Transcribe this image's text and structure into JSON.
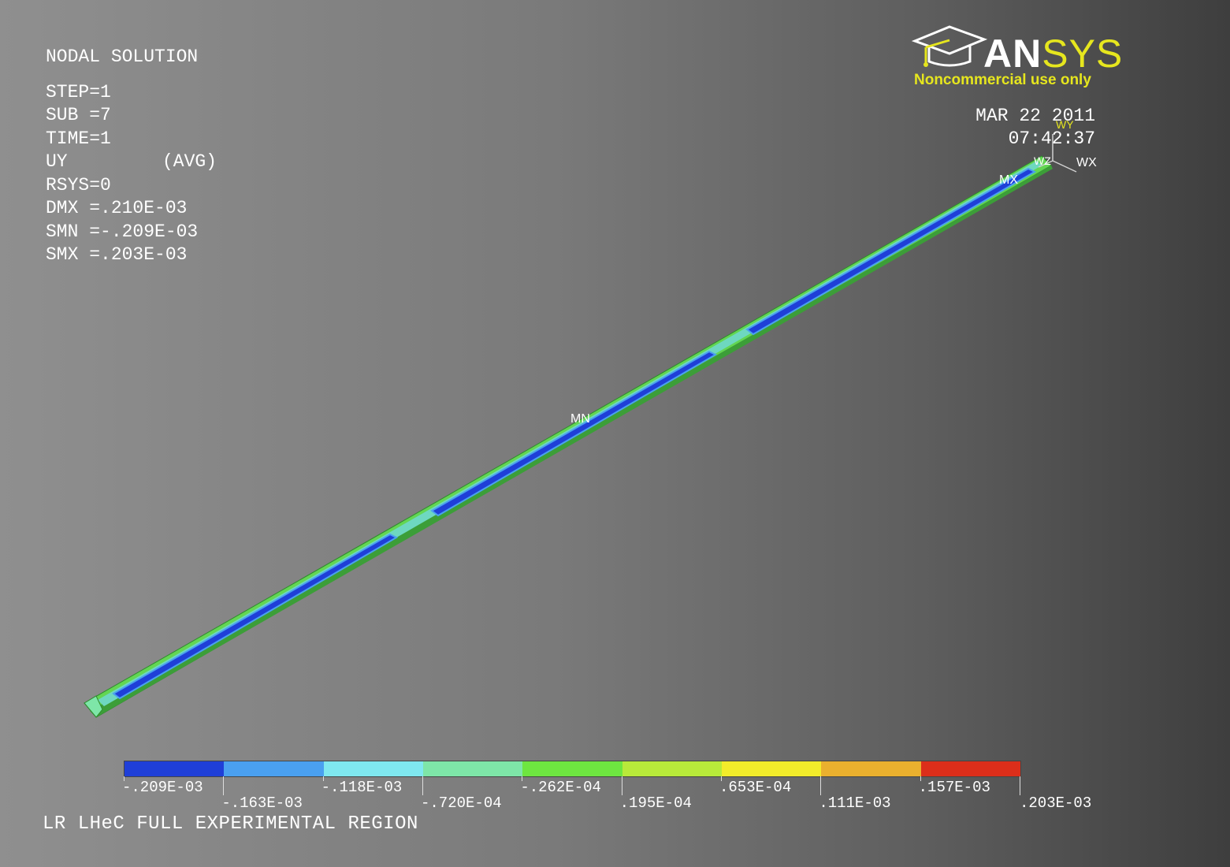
{
  "info": {
    "title": "NODAL SOLUTION",
    "step": "STEP=1",
    "sub": "SUB =7",
    "time": "TIME=1",
    "uy": "UY",
    "avg": "(AVG)",
    "rsys": "RSYS=0",
    "dmx": "DMX =.210E-03",
    "smn": "SMN =-.209E-03",
    "smx": "SMX =.203E-03"
  },
  "logo": {
    "word_an": "AN",
    "word_sys": "SYS",
    "subtitle": "Noncommercial use only"
  },
  "datetime": {
    "date": "MAR 22 2011",
    "time": "07:42:37"
  },
  "triad": {
    "wx": "WX",
    "wy": "WY",
    "wz": "WZ"
  },
  "markers": {
    "mx": "MX",
    "mn": "MN"
  },
  "legend": {
    "colors": [
      "#1f3fd8",
      "#4aa0f0",
      "#7fe8f0",
      "#7ee6a8",
      "#6ee640",
      "#b8ea3a",
      "#f2ec2a",
      "#eab02e",
      "#dc2e1a"
    ],
    "labels_top": [
      "-.209E-03",
      "-.118E-03",
      "-.262E-04",
      ".653E-04",
      ".157E-03"
    ],
    "labels_bottom": [
      "-.163E-03",
      "-.720E-04",
      ".195E-04",
      ".111E-03",
      ".203E-03"
    ]
  },
  "caption": "LR LHeC FULL EXPERIMENTAL REGION"
}
